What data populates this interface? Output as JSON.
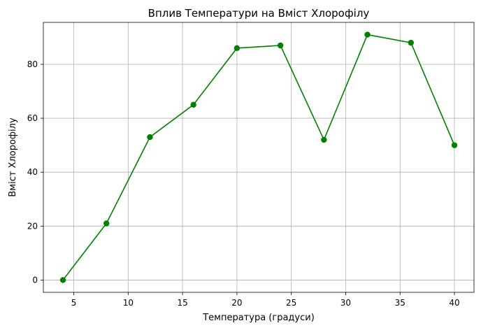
{
  "chart_data": {
    "type": "line",
    "title": "Вплив Температури на Вміст Хлорофілу",
    "xlabel": "Температура (градуси)",
    "ylabel": "Вміст Хлорофілу",
    "x": [
      4,
      8,
      12,
      16,
      20,
      24,
      28,
      32,
      36,
      40
    ],
    "series": [
      {
        "values": [
          0,
          21,
          53,
          65,
          86,
          87,
          52,
          91,
          88,
          50
        ]
      }
    ],
    "xlim": [
      2.2,
      41.8
    ],
    "ylim": [
      -4.55,
      95.55
    ],
    "xticks": [
      5,
      10,
      15,
      20,
      25,
      30,
      35,
      40
    ],
    "yticks": [
      0,
      20,
      40,
      60,
      80
    ],
    "grid": true,
    "color": "#008000",
    "marker": "circle"
  }
}
